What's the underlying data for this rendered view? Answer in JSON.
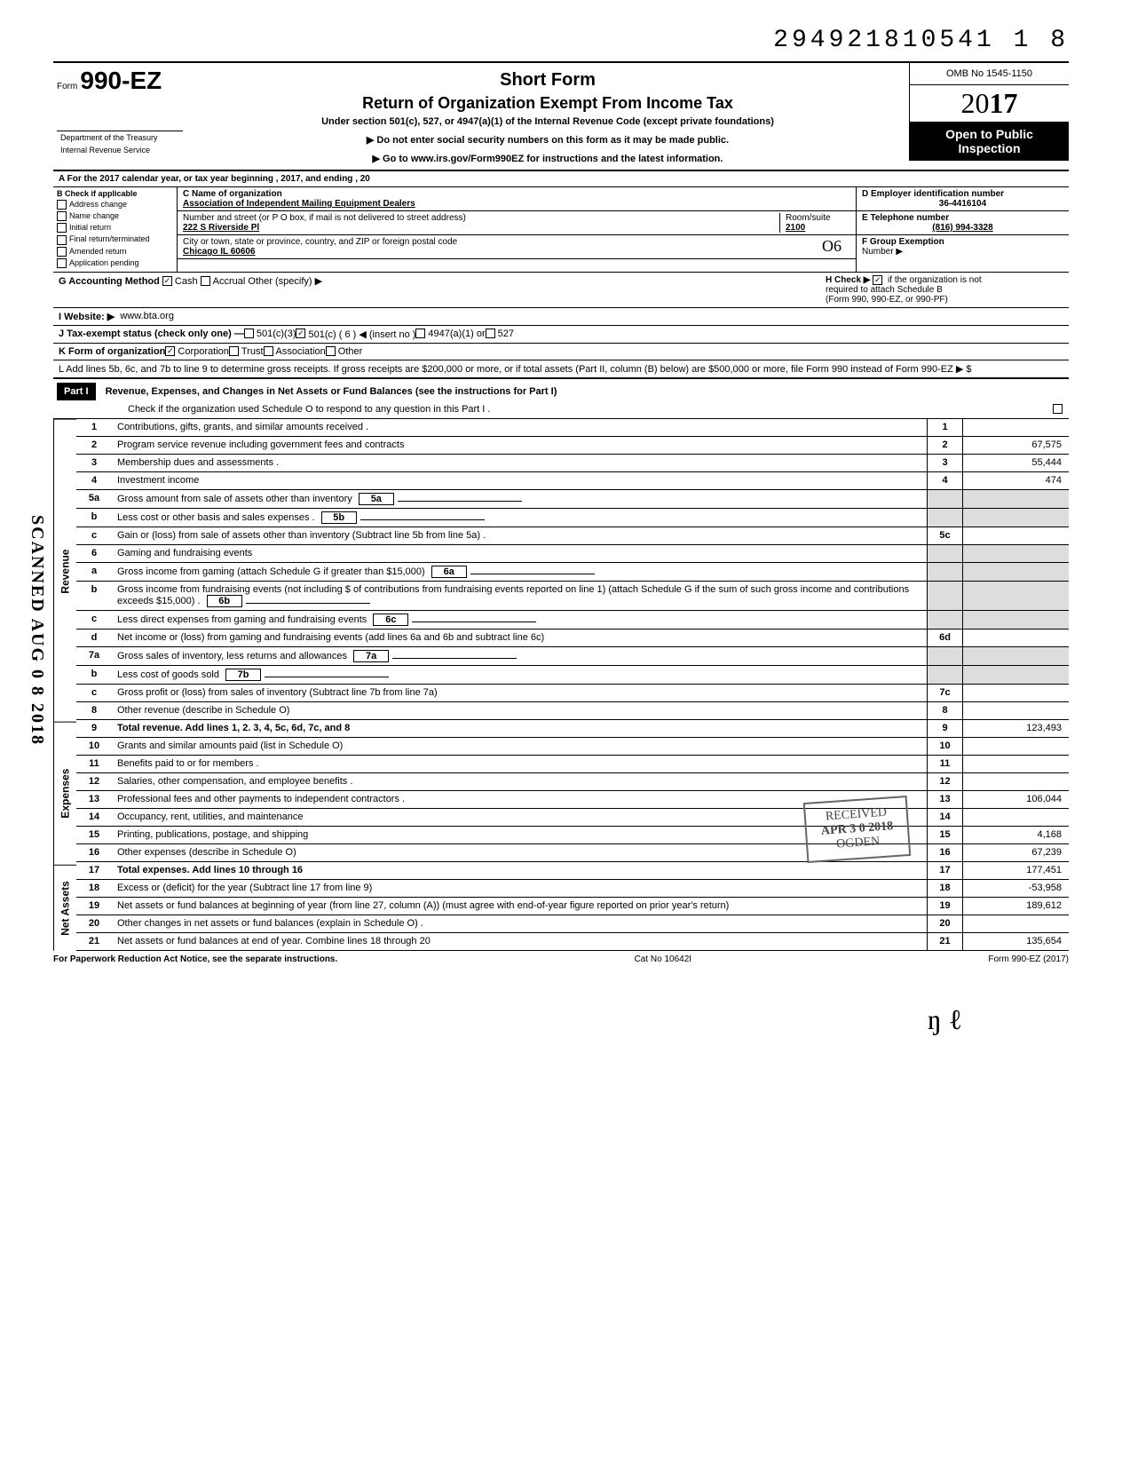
{
  "doc_number": "294921810541 1  8",
  "form": {
    "label": "Form",
    "number": "990-EZ",
    "title": "Short Form",
    "subtitle": "Return of Organization Exempt From Income Tax",
    "under": "Under section 501(c), 527, or 4947(a)(1) of the Internal Revenue Code (except private foundations)",
    "warn": "▶ Do not enter social security numbers on this form as it may be made public.",
    "goto": "▶ Go to www.irs.gov/Form990EZ for instructions and the latest information.",
    "omb": "OMB No 1545-1150",
    "year_prefix": "20",
    "year_bold": "17",
    "inspection1": "Open to Public",
    "inspection2": "Inspection",
    "dept1": "Department of the Treasury",
    "dept2": "Internal Revenue Service"
  },
  "lineA": "A  For the 2017 calendar year, or tax year beginning                                                              , 2017, and ending                                          , 20",
  "sectionB": {
    "header": "B  Check if applicable",
    "items": [
      "Address change",
      "Name change",
      "Initial return",
      "Final return/terminated",
      "Amended return",
      "Application pending"
    ]
  },
  "sectionC": {
    "label": "C  Name of organization",
    "name": "Association of Independent Mailing Equipment Dealers",
    "addr_label": "Number and street (or P O  box, if mail is not delivered to street address)",
    "room_label": "Room/suite",
    "street": "222 S Riverside Pl",
    "room": "2100",
    "city_label": "City or town, state or province, country, and ZIP or foreign postal code",
    "city": "Chicago IL 60606",
    "city_hand": "O6"
  },
  "sectionD": {
    "label": "D Employer identification number",
    "value": "36-4416104"
  },
  "sectionE": {
    "label": "E  Telephone number",
    "value": "(816) 994-3328"
  },
  "sectionF": {
    "label": "F  Group Exemption",
    "label2": "Number ▶"
  },
  "lineG": {
    "label": "G  Accounting Method",
    "cash": "Cash",
    "accrual": "Accrual",
    "other": "Other (specify) ▶"
  },
  "lineH": {
    "text1": "H  Check ▶",
    "text2": "if the organization is not",
    "text3": "required to attach Schedule B",
    "text4": "(Form 990, 990-EZ, or 990-PF)"
  },
  "lineI": {
    "label": "I  Website: ▶",
    "value": "www.bta.org"
  },
  "lineJ": {
    "label": "J  Tax-exempt status (check only one) —",
    "c3": "501(c)(3)",
    "c": "501(c) (  6  ) ◀ (insert no )",
    "a": "4947(a)(1) or",
    "527": "527"
  },
  "lineK": {
    "label": "K  Form of organization",
    "corp": "Corporation",
    "trust": "Trust",
    "assoc": "Association",
    "other": "Other"
  },
  "lineL": "L  Add lines 5b, 6c, and 7b to line 9 to determine gross receipts. If gross receipts are $200,000 or more, or if total assets (Part II, column (B) below) are $500,000 or more, file Form 990 instead of Form 990-EZ                                                          ▶   $",
  "part1": {
    "label": "Part I",
    "title": "Revenue, Expenses, and Changes in Net Assets or Fund Balances (see the instructions for Part I)",
    "check": "Check if the organization used Schedule O to respond to any question in this Part I  ."
  },
  "lines": {
    "l1": {
      "n": "1",
      "d": "Contributions, gifts, grants, and similar amounts received .",
      "b": "1",
      "v": ""
    },
    "l2": {
      "n": "2",
      "d": "Program service revenue including government fees and contracts",
      "b": "2",
      "v": "67,575"
    },
    "l3": {
      "n": "3",
      "d": "Membership dues and assessments .",
      "b": "3",
      "v": "55,444"
    },
    "l4": {
      "n": "4",
      "d": "Investment income",
      "b": "4",
      "v": "474"
    },
    "l5a": {
      "n": "5a",
      "d": "Gross amount from sale of assets other than inventory",
      "sb": "5a"
    },
    "l5b": {
      "n": "b",
      "d": "Less  cost or other basis and sales expenses .",
      "sb": "5b"
    },
    "l5c": {
      "n": "c",
      "d": "Gain or (loss) from sale of assets other than inventory (Subtract line 5b from line 5a) .",
      "b": "5c",
      "v": ""
    },
    "l6": {
      "n": "6",
      "d": "Gaming and fundraising events"
    },
    "l6a": {
      "n": "a",
      "d": "Gross income from gaming (attach Schedule G if greater than $15,000)",
      "sb": "6a"
    },
    "l6b": {
      "n": "b",
      "d": "Gross income from fundraising events (not including  $                       of contributions from fundraising events reported on line 1) (attach Schedule G if the sum of such gross income and contributions exceeds $15,000) .",
      "sb": "6b"
    },
    "l6c": {
      "n": "c",
      "d": "Less  direct expenses from gaming and fundraising events",
      "sb": "6c"
    },
    "l6d": {
      "n": "d",
      "d": "Net income or (loss) from gaming and fundraising events (add lines 6a and 6b and subtract line 6c)",
      "b": "6d",
      "v": ""
    },
    "l7a": {
      "n": "7a",
      "d": "Gross sales of inventory, less returns and allowances",
      "sb": "7a"
    },
    "l7b": {
      "n": "b",
      "d": "Less  cost of goods sold",
      "sb": "7b"
    },
    "l7c": {
      "n": "c",
      "d": "Gross profit or (loss) from sales of inventory (Subtract line 7b from line 7a)",
      "b": "7c",
      "v": ""
    },
    "l8": {
      "n": "8",
      "d": "Other revenue (describe in Schedule O)",
      "b": "8",
      "v": ""
    },
    "l9": {
      "n": "9",
      "d": "Total revenue. Add lines 1, 2. 3, 4, 5c, 6d, 7c, and 8",
      "b": "9",
      "v": "123,493"
    },
    "l10": {
      "n": "10",
      "d": "Grants and similar amounts paid (list in Schedule O)",
      "b": "10",
      "v": ""
    },
    "l11": {
      "n": "11",
      "d": "Benefits paid to or for members   .",
      "b": "11",
      "v": ""
    },
    "l12": {
      "n": "12",
      "d": "Salaries, other compensation, and employee benefits  .",
      "b": "12",
      "v": ""
    },
    "l13": {
      "n": "13",
      "d": "Professional fees and other payments to independent contractors .",
      "b": "13",
      "v": "106,044"
    },
    "l14": {
      "n": "14",
      "d": "Occupancy, rent, utilities, and maintenance",
      "b": "14",
      "v": ""
    },
    "l15": {
      "n": "15",
      "d": "Printing, publications, postage, and shipping",
      "b": "15",
      "v": "4,168"
    },
    "l16": {
      "n": "16",
      "d": "Other expenses (describe in Schedule O)",
      "b": "16",
      "v": "67,239"
    },
    "l17": {
      "n": "17",
      "d": "Total expenses. Add lines 10 through 16",
      "b": "17",
      "v": "177,451"
    },
    "l18": {
      "n": "18",
      "d": "Excess or (deficit) for the year (Subtract line 17 from line 9)",
      "b": "18",
      "v": "-53,958"
    },
    "l19": {
      "n": "19",
      "d": "Net assets or fund balances at beginning of year (from line 27, column (A)) (must agree with end-of-year figure reported on prior year's return)",
      "b": "19",
      "v": "189,612"
    },
    "l20": {
      "n": "20",
      "d": "Other changes in net assets or fund balances (explain in Schedule O) .",
      "b": "20",
      "v": ""
    },
    "l21": {
      "n": "21",
      "d": "Net assets or fund balances at end of year. Combine lines 18 through 20",
      "b": "21",
      "v": "135,654"
    }
  },
  "side": {
    "revenue": "Revenue",
    "expenses": "Expenses",
    "netassets": "Net Assets"
  },
  "scanned": "SCANNED  AUG 0 8 2018",
  "footer": {
    "left": "For Paperwork Reduction Act Notice, see the separate instructions.",
    "center": "Cat  No  10642I",
    "right": "Form 990-EZ  (2017)"
  },
  "stamp": {
    "l1": "RECEIVED",
    "l2": "APR 3 0 2018",
    "l3": "OGDEN"
  },
  "initials": "ŋ  ℓ"
}
